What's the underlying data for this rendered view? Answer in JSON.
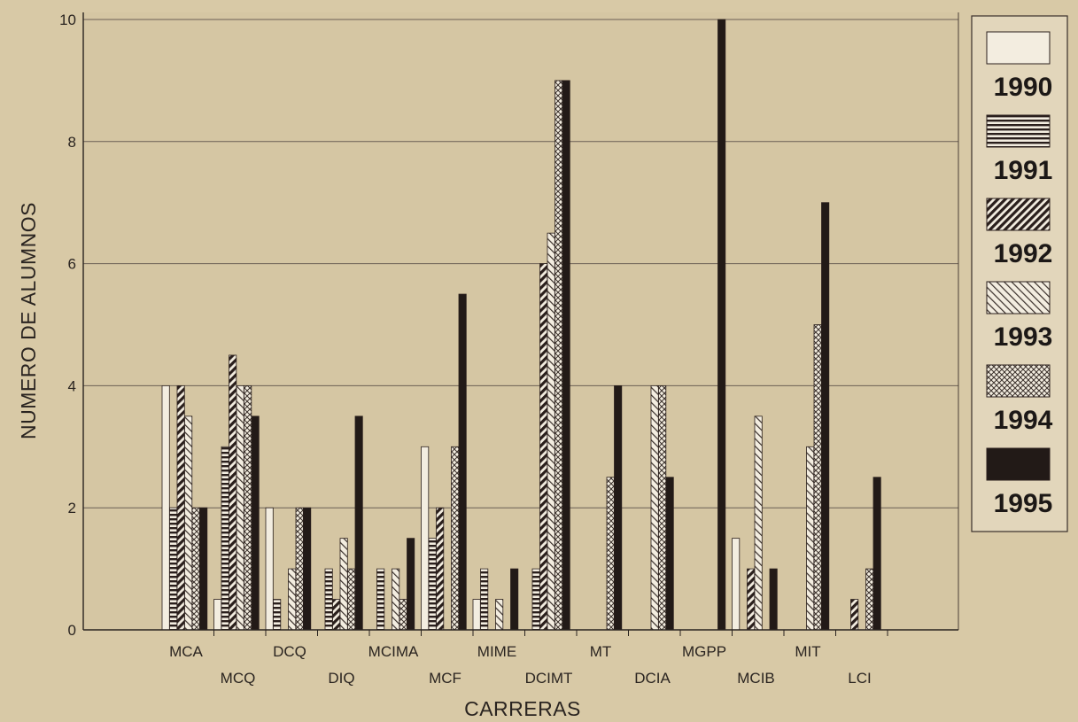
{
  "chart_data": {
    "type": "bar",
    "title": "",
    "xlabel": "CARRERAS",
    "ylabel": "NUMERO DE ALUMNOS",
    "ylim": [
      0,
      10
    ],
    "yticks": [
      "0",
      "2",
      "4",
      "6",
      "8",
      "10"
    ],
    "grid": true,
    "legend_position": "right",
    "categories": [
      "MCA",
      "MCQ",
      "DCQ",
      "DIQ",
      "MCIMA",
      "MCF",
      "MIME",
      "DCIMT",
      "MT",
      "DCIA",
      "MGPP",
      "MCIB",
      "MIT",
      "LCI"
    ],
    "series": [
      {
        "name": "1990",
        "pattern": "open",
        "values": [
          4,
          0.5,
          2,
          0,
          0,
          3,
          0.5,
          0,
          0,
          0,
          0,
          1.5,
          0,
          0
        ]
      },
      {
        "name": "1991",
        "pattern": "horizontal",
        "values": [
          2,
          3,
          0.5,
          1,
          1,
          1.5,
          1,
          1,
          0,
          0,
          0,
          0,
          0,
          0
        ]
      },
      {
        "name": "1992",
        "pattern": "dense-diagonal",
        "values": [
          4,
          4.5,
          0,
          0.5,
          0,
          2,
          0,
          6,
          0,
          0,
          0,
          1,
          0,
          0.5
        ]
      },
      {
        "name": "1993",
        "pattern": "diagonal",
        "values": [
          3.5,
          4,
          1,
          1.5,
          1,
          0,
          0.5,
          6.5,
          0,
          4,
          0,
          3.5,
          3,
          0
        ]
      },
      {
        "name": "1994",
        "pattern": "crosshatch",
        "values": [
          2,
          4,
          2,
          1,
          0.5,
          3,
          0,
          9,
          2.5,
          4,
          0,
          0,
          5,
          1
        ]
      },
      {
        "name": "1995",
        "pattern": "solid",
        "values": [
          2,
          3.5,
          2,
          3.5,
          1.5,
          5.5,
          1,
          9,
          4,
          2.5,
          10,
          1,
          7,
          2.5
        ]
      }
    ]
  }
}
